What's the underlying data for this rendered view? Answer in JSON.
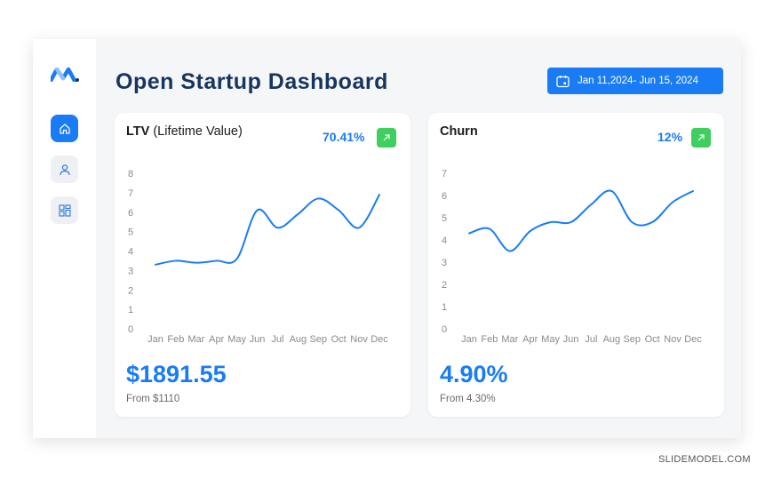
{
  "sidebar": {
    "items": [
      {
        "name": "home",
        "icon": "home-icon",
        "active": true
      },
      {
        "name": "user",
        "icon": "user-icon",
        "active": false
      },
      {
        "name": "widgets",
        "icon": "widgets-icon",
        "active": false
      }
    ]
  },
  "header": {
    "title": "Open Startup Dashboard",
    "date_range": "Jan 11,2024- Jun 15, 2024"
  },
  "cards": {
    "ltv": {
      "title_bold": "LTV",
      "title_rest": " (Lifetime Value)",
      "change_pct": "70.41%",
      "value": "$1891.55",
      "from": "From $1110"
    },
    "churn": {
      "title_bold": "Churn",
      "change_pct": "12%",
      "value": "4.90%",
      "from": "From 4.30%"
    }
  },
  "watermark": "SLIDEMODEL.COM",
  "colors": {
    "accent": "#1a7cf5",
    "title": "#17365f",
    "positive_badge": "#3ecf5f",
    "line": "#1a7cf5"
  },
  "chart_data": [
    {
      "type": "line",
      "months": [
        "Jan",
        "Feb",
        "Mar",
        "Apr",
        "May",
        "Jun",
        "Jul",
        "Aug",
        "Sep",
        "Oct",
        "Nov",
        "Dec"
      ],
      "ylim": [
        0,
        8
      ],
      "yticks": [
        0,
        1,
        2,
        3,
        4,
        5,
        6,
        7,
        8
      ],
      "series": [
        {
          "values": [
            3.3,
            3.5,
            3.4,
            3.5,
            3.6,
            6.1,
            5.2,
            5.9,
            6.7,
            6.1,
            5.2,
            6.9
          ]
        }
      ]
    },
    {
      "type": "line",
      "months": [
        "Jan",
        "Feb",
        "Mar",
        "Apr",
        "May",
        "Jun",
        "Jul",
        "Aug",
        "Sep",
        "Oct",
        "Nov",
        "Dec"
      ],
      "ylim": [
        0,
        7
      ],
      "yticks": [
        0,
        1,
        2,
        3,
        4,
        5,
        6,
        7
      ],
      "series": [
        {
          "values": [
            4.3,
            4.5,
            3.5,
            4.4,
            4.8,
            4.8,
            5.6,
            6.2,
            4.8,
            4.8,
            5.7,
            6.2
          ]
        }
      ]
    }
  ]
}
